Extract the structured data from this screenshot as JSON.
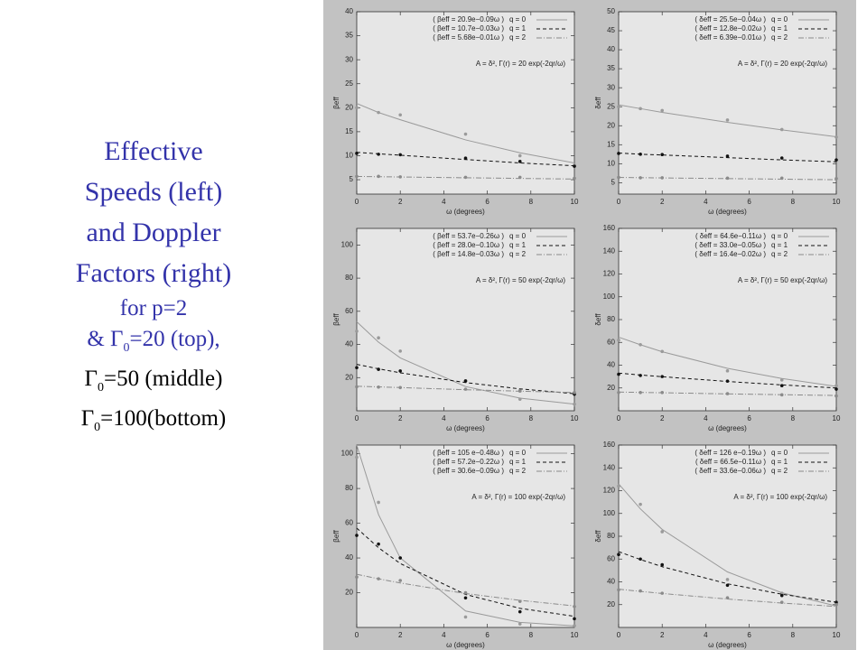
{
  "slide_text": {
    "title_lines": [
      "Effective",
      "Speeds (left)",
      "and Doppler",
      "Factors (right)",
      "for p=2"
    ],
    "gamma_lines": [
      {
        "pre": "& Γ",
        "sub": "0",
        "post": "=20 (top),"
      },
      {
        "pre": "Γ",
        "sub": "0",
        "post": "=50 (middle)"
      },
      {
        "pre": "Γ",
        "sub": "0",
        "post": "=100(bottom)"
      }
    ]
  },
  "chart_data": [
    {
      "type": "line",
      "ylabel": "βeff",
      "xlabel": "ω  (degrees)",
      "annotation": "A = δ²,   Γ(r) = 20 exp(-2qr/ω)",
      "x": [
        0,
        1,
        2,
        5,
        7.5,
        10
      ],
      "xlim": [
        0,
        10
      ],
      "xticks": [
        0,
        2,
        4,
        6,
        8,
        10
      ],
      "ylim": [
        2,
        40
      ],
      "yticks": [
        5,
        10,
        15,
        20,
        25,
        30,
        35,
        40
      ],
      "series": [
        {
          "name": "( βeff = 20.9e−0.09ω )",
          "q_label": "q = 0",
          "color": "#9a9a9a",
          "line_style": "solid",
          "values": [
            20,
            19,
            18.5,
            14.5,
            10,
            8
          ],
          "fit": [
            20.9,
            19.0,
            17.5,
            13.3,
            10.6,
            8.5
          ]
        },
        {
          "name": "( βeff = 10.7e−0.03ω )",
          "q_label": "q = 1",
          "color": "#111111",
          "line_style": "dashed",
          "values": [
            10.5,
            10.3,
            10.2,
            9.5,
            8.8,
            7.8
          ],
          "fit": [
            10.7,
            10.4,
            10.1,
            9.2,
            8.5,
            7.9
          ]
        },
        {
          "name": "( βeff = 5.68e−0.01ω )",
          "q_label": "q = 2",
          "color": "#8a8a8a",
          "line_style": "dashdot",
          "values": [
            5.7,
            5.7,
            5.6,
            5.5,
            5.5,
            5.3
          ],
          "fit": [
            5.68,
            5.62,
            5.57,
            5.4,
            5.27,
            5.14
          ]
        }
      ]
    },
    {
      "type": "line",
      "ylabel": "δeff",
      "xlabel": "ω  (degrees)",
      "annotation": "A = δ²,   Γ(r) = 20 exp(-2qr/ω)",
      "x": [
        0,
        1,
        2,
        5,
        7.5,
        10
      ],
      "xlim": [
        0,
        10
      ],
      "xticks": [
        0,
        2,
        4,
        6,
        8,
        10
      ],
      "ylim": [
        2,
        50
      ],
      "yticks": [
        5,
        10,
        15,
        20,
        25,
        30,
        35,
        40,
        45,
        50
      ],
      "series": [
        {
          "name": "( δeff = 25.5e−0.04ω )",
          "q_label": "q = 0",
          "color": "#9a9a9a",
          "line_style": "solid",
          "values": [
            25,
            24.5,
            24,
            21.5,
            19,
            17
          ],
          "fit": [
            25.5,
            24.5,
            23.5,
            20.9,
            18.9,
            17.1
          ]
        },
        {
          "name": "( δeff = 12.8e−0.02ω )",
          "q_label": "q = 1",
          "color": "#111111",
          "line_style": "dashed",
          "values": [
            12.7,
            12.5,
            12.4,
            12,
            11.5,
            11
          ],
          "fit": [
            12.8,
            12.5,
            12.3,
            11.6,
            11.0,
            10.5
          ]
        },
        {
          "name": "( δeff = 6.39e−0.01ω )",
          "q_label": "q = 2",
          "color": "#8a8a8a",
          "line_style": "dashdot",
          "values": [
            6.4,
            6.3,
            6.3,
            6.2,
            6.2,
            6.1
          ],
          "fit": [
            6.39,
            6.33,
            6.26,
            6.08,
            5.93,
            5.78
          ]
        }
      ]
    },
    {
      "type": "line",
      "ylabel": "βeff",
      "xlabel": "ω  (degrees)",
      "annotation": "A = δ²,   Γ(r) = 50 exp(-2qr/ω)",
      "x": [
        0,
        1,
        2,
        5,
        7.5,
        10
      ],
      "xlim": [
        0,
        10
      ],
      "xticks": [
        0,
        2,
        4,
        6,
        8,
        10
      ],
      "ylim": [
        0,
        110
      ],
      "yticks": [
        20,
        40,
        60,
        80,
        100
      ],
      "series": [
        {
          "name": "( βeff = 53.7e−0.26ω )",
          "q_label": "q = 0",
          "color": "#9a9a9a",
          "line_style": "solid",
          "values": [
            48,
            44,
            36,
            18,
            7,
            4
          ],
          "fit": [
            53.7,
            41.4,
            31.9,
            14.6,
            7.6,
            4.0
          ]
        },
        {
          "name": "( βeff = 28.0e−0.10ω )",
          "q_label": "q = 1",
          "color": "#111111",
          "line_style": "dashed",
          "values": [
            26,
            25,
            24,
            18,
            12,
            10
          ],
          "fit": [
            28.0,
            25.3,
            22.9,
            17.0,
            13.2,
            10.3
          ]
        },
        {
          "name": "( βeff = 14.8e−0.03ω )",
          "q_label": "q = 2",
          "color": "#8a8a8a",
          "line_style": "dashdot",
          "values": [
            14.5,
            14.3,
            14,
            13,
            12,
            11
          ],
          "fit": [
            14.8,
            14.4,
            14.0,
            12.7,
            11.8,
            11.0
          ]
        }
      ]
    },
    {
      "type": "line",
      "ylabel": "δeff",
      "xlabel": "ω  (degrees)",
      "annotation": "A = δ²,   Γ(r) = 50 exp(-2qr/ω)",
      "x": [
        0,
        1,
        2,
        5,
        7.5,
        10
      ],
      "xlim": [
        0,
        10
      ],
      "xticks": [
        0,
        2,
        4,
        6,
        8,
        10
      ],
      "ylim": [
        0,
        160
      ],
      "yticks": [
        20,
        40,
        60,
        80,
        100,
        120,
        140,
        160
      ],
      "series": [
        {
          "name": "( δeff = 64.6e−0.11ω )",
          "q_label": "q = 0",
          "color": "#9a9a9a",
          "line_style": "solid",
          "values": [
            62,
            58,
            52,
            35,
            27,
            22
          ],
          "fit": [
            64.6,
            57.9,
            51.8,
            37.2,
            28.3,
            21.4
          ]
        },
        {
          "name": "( δeff = 33.0e−0.05ω )",
          "q_label": "q = 1",
          "color": "#111111",
          "line_style": "dashed",
          "values": [
            32,
            31,
            30,
            26,
            22,
            19
          ],
          "fit": [
            33.0,
            31.4,
            29.9,
            25.7,
            22.7,
            20.0
          ]
        },
        {
          "name": "( δeff = 16.4e−0.02ω )",
          "q_label": "q = 2",
          "color": "#8a8a8a",
          "line_style": "dashdot",
          "values": [
            16,
            16,
            16,
            15,
            14,
            13
          ],
          "fit": [
            16.4,
            16.1,
            15.8,
            14.8,
            14.1,
            13.4
          ]
        }
      ]
    },
    {
      "type": "line",
      "ylabel": "βeff",
      "xlabel": "ω  (degrees)",
      "annotation": "A = δ²,   Γ(r) = 100 exp(-2qr/ω)",
      "x": [
        0,
        1,
        2,
        5,
        7.5,
        10
      ],
      "xlim": [
        0,
        10
      ],
      "xticks": [
        0,
        2,
        4,
        6,
        8,
        10
      ],
      "ylim": [
        0,
        105
      ],
      "yticks": [
        20,
        40,
        60,
        80,
        100
      ],
      "series": [
        {
          "name": "( βeff = 105 e−0.48ω )",
          "q_label": "q = 0",
          "color": "#9a9a9a",
          "line_style": "solid",
          "values": [
            98,
            72,
            40,
            6,
            2,
            1
          ],
          "fit": [
            105,
            65,
            40,
            9.5,
            2.9,
            0.9
          ]
        },
        {
          "name": "( βeff = 57.2e−0.22ω )",
          "q_label": "q = 1",
          "color": "#111111",
          "line_style": "dashed",
          "values": [
            53,
            48,
            40,
            17,
            9,
            5
          ],
          "fit": [
            57.2,
            45.9,
            36.8,
            19.0,
            11.0,
            6.4
          ]
        },
        {
          "name": "( βeff = 30.6e−0.09ω )",
          "q_label": "q = 2",
          "color": "#8a8a8a",
          "line_style": "dashdot",
          "values": [
            29,
            28,
            27,
            20,
            15,
            12
          ],
          "fit": [
            30.6,
            28.0,
            25.6,
            19.5,
            15.6,
            12.4
          ]
        }
      ]
    },
    {
      "type": "line",
      "ylabel": "δeff",
      "xlabel": "ω  (degrees)",
      "annotation": "A = δ²,   Γ(r) = 100 exp(-2qr/ω)",
      "x": [
        0,
        1,
        2,
        5,
        7.5,
        10
      ],
      "xlim": [
        0,
        10
      ],
      "xticks": [
        0,
        2,
        4,
        6,
        8,
        10
      ],
      "ylim": [
        0,
        160
      ],
      "yticks": [
        20,
        40,
        60,
        80,
        100,
        120,
        140,
        160
      ],
      "series": [
        {
          "name": "( δeff = 126 e−0.19ω )",
          "q_label": "q = 0",
          "color": "#9a9a9a",
          "line_style": "solid",
          "values": [
            124,
            108,
            84,
            42,
            30,
            20
          ],
          "fit": [
            126,
            104,
            86,
            48.7,
            30.4,
            18.8
          ]
        },
        {
          "name": "( δeff = 66.5e−0.11ω )",
          "q_label": "q = 1",
          "color": "#111111",
          "line_style": "dashed",
          "values": [
            64,
            60,
            55,
            37,
            28,
            22
          ],
          "fit": [
            66.5,
            59.6,
            53.3,
            38.3,
            29.1,
            22.1
          ]
        },
        {
          "name": "( δeff = 33.6e−0.06ω )",
          "q_label": "q = 2",
          "color": "#8a8a8a",
          "line_style": "dashdot",
          "values": [
            33,
            32,
            30,
            26,
            22,
            20
          ],
          "fit": [
            33.6,
            31.6,
            29.8,
            24.9,
            21.4,
            18.4
          ]
        }
      ]
    }
  ]
}
